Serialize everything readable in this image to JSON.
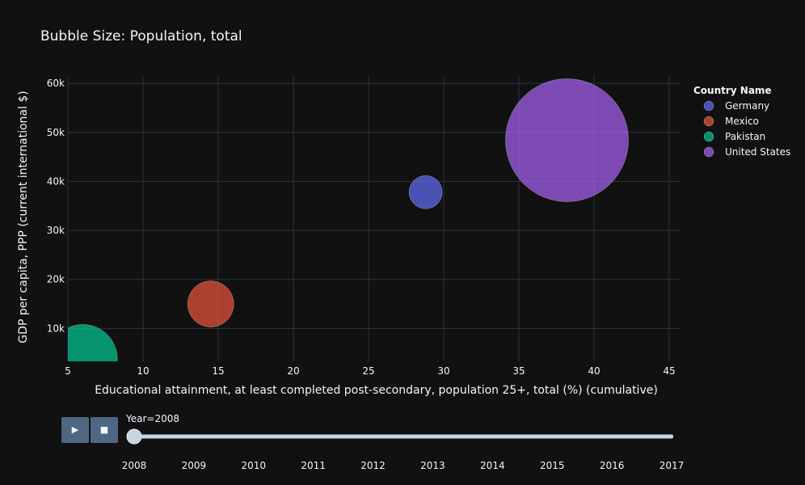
{
  "chart_data": {
    "type": "scatter",
    "title": "Bubble Size: Population, total",
    "xlabel": "Educational attainment, at least completed post-secondary, population 25+, total (%) (cumulative)",
    "ylabel": "GDP per capita, PPP (current international $)",
    "xlim": [
      5,
      45.7
    ],
    "ylim": [
      3300,
      61500
    ],
    "x_ticks": [
      5,
      10,
      15,
      20,
      25,
      30,
      35,
      40,
      45
    ],
    "y_ticks": [
      10000,
      20000,
      30000,
      40000,
      50000,
      60000
    ],
    "y_tick_labels": [
      "10k",
      "20k",
      "30k",
      "40k",
      "50k",
      "60k"
    ],
    "grid": true,
    "legend": {
      "title": "Country Name",
      "position": "right"
    },
    "series": [
      {
        "name": "Germany",
        "color": "#636efa",
        "x": 28.8,
        "y": 37800,
        "size": 82
      },
      {
        "name": "Mexico",
        "color": "#ef553b",
        "x": 14.5,
        "y": 15000,
        "size": 114
      },
      {
        "name": "Pakistan",
        "color": "#00cc96",
        "x": 6.0,
        "y": 3800,
        "size": 170
      },
      {
        "name": "United States",
        "color": "#ab63fa",
        "x": 38.2,
        "y": 48400,
        "size": 304
      }
    ]
  },
  "slider": {
    "current_label": "Year=2008",
    "steps": [
      "2008",
      "2009",
      "2010",
      "2011",
      "2012",
      "2013",
      "2014",
      "2015",
      "2016",
      "2017"
    ],
    "active_index": 0
  },
  "controls": {
    "play_label": "▶",
    "stop_label": "■"
  }
}
